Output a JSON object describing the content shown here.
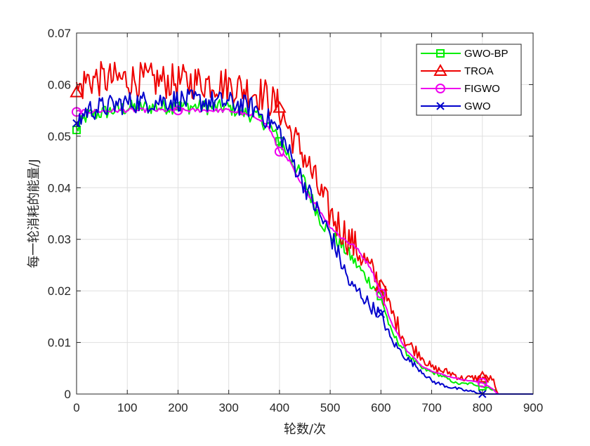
{
  "chart_data": {
    "type": "line",
    "title": "",
    "xlabel": "轮数/次",
    "ylabel": "每一轮消耗的能量/J",
    "xlim": [
      0,
      900
    ],
    "ylim": [
      0,
      0.07
    ],
    "xticks": [
      0,
      100,
      200,
      300,
      400,
      500,
      600,
      700,
      800,
      900
    ],
    "yticks": [
      0,
      0.01,
      0.02,
      0.03,
      0.04,
      0.05,
      0.06,
      0.07
    ],
    "xtick_labels": [
      "0",
      "100",
      "200",
      "300",
      "400",
      "500",
      "600",
      "700",
      "800",
      "900"
    ],
    "ytick_labels": [
      "0",
      "0.01",
      "0.02",
      "0.03",
      "0.04",
      "0.05",
      "0.06",
      "0.07"
    ],
    "grid": true,
    "legend_position": "top-right",
    "series": [
      {
        "name": "GWO-BP",
        "color": "#00ee00",
        "marker": "square",
        "marker_x": [
          0,
          200,
          400,
          600,
          800
        ],
        "noise": 0.0015,
        "points": [
          [
            0,
            0.0512
          ],
          [
            20,
            0.054
          ],
          [
            100,
            0.0555
          ],
          [
            200,
            0.0558
          ],
          [
            300,
            0.0555
          ],
          [
            350,
            0.054
          ],
          [
            380,
            0.052
          ],
          [
            400,
            0.049
          ],
          [
            420,
            0.046
          ],
          [
            450,
            0.041
          ],
          [
            480,
            0.034
          ],
          [
            500,
            0.031
          ],
          [
            530,
            0.028
          ],
          [
            560,
            0.024
          ],
          [
            600,
            0.019
          ],
          [
            620,
            0.012
          ],
          [
            650,
            0.008
          ],
          [
            680,
            0.005
          ],
          [
            720,
            0.0035
          ],
          [
            740,
            0.0025
          ],
          [
            750,
            0.002
          ],
          [
            780,
            0.002
          ],
          [
            800,
            0.0015
          ],
          [
            825,
            0.0008
          ],
          [
            830,
            0
          ],
          [
            900,
            0
          ]
        ]
      },
      {
        "name": "TROA",
        "color": "#ee0000",
        "marker": "triangle",
        "marker_x": [
          0,
          400,
          600,
          800
        ],
        "noise": 0.0035,
        "points": [
          [
            0,
            0.0585
          ],
          [
            20,
            0.061
          ],
          [
            100,
            0.061
          ],
          [
            200,
            0.0605
          ],
          [
            270,
            0.0605
          ],
          [
            320,
            0.0595
          ],
          [
            370,
            0.058
          ],
          [
            400,
            0.0555
          ],
          [
            420,
            0.051
          ],
          [
            450,
            0.046
          ],
          [
            480,
            0.039
          ],
          [
            500,
            0.035
          ],
          [
            530,
            0.031
          ],
          [
            560,
            0.027
          ],
          [
            580,
            0.024
          ],
          [
            600,
            0.021
          ],
          [
            620,
            0.016
          ],
          [
            650,
            0.01
          ],
          [
            680,
            0.0075
          ],
          [
            700,
            0.005
          ],
          [
            740,
            0.004
          ],
          [
            760,
            0.003
          ],
          [
            800,
            0.0032
          ],
          [
            820,
            0.003
          ],
          [
            830,
            0
          ],
          [
            900,
            0
          ]
        ]
      },
      {
        "name": "FIGWO",
        "color": "#ee00ee",
        "marker": "circle",
        "marker_x": [
          0,
          200,
          400,
          600,
          800
        ],
        "noise": 0.0004,
        "points": [
          [
            0,
            0.0547
          ],
          [
            30,
            0.0548
          ],
          [
            100,
            0.055
          ],
          [
            150,
            0.055
          ],
          [
            200,
            0.055
          ],
          [
            240,
            0.055
          ],
          [
            300,
            0.055
          ],
          [
            340,
            0.054
          ],
          [
            360,
            0.0535
          ],
          [
            380,
            0.0515
          ],
          [
            400,
            0.047
          ],
          [
            420,
            0.045
          ],
          [
            440,
            0.041
          ],
          [
            470,
            0.037
          ],
          [
            500,
            0.0325
          ],
          [
            520,
            0.0305
          ],
          [
            550,
            0.0285
          ],
          [
            580,
            0.0245
          ],
          [
            600,
            0.0195
          ],
          [
            620,
            0.014
          ],
          [
            650,
            0.0085
          ],
          [
            680,
            0.0055
          ],
          [
            700,
            0.0045
          ],
          [
            730,
            0.0035
          ],
          [
            760,
            0.0028
          ],
          [
            800,
            0.0022
          ],
          [
            820,
            0.001
          ],
          [
            830,
            0
          ],
          [
            900,
            0
          ]
        ]
      },
      {
        "name": "GWO",
        "color": "#0000cc",
        "marker": "x",
        "marker_x": [
          0,
          600,
          800
        ],
        "noise": 0.0022,
        "points": [
          [
            0,
            0.0525
          ],
          [
            20,
            0.055
          ],
          [
            100,
            0.0565
          ],
          [
            200,
            0.057
          ],
          [
            300,
            0.0565
          ],
          [
            350,
            0.0555
          ],
          [
            380,
            0.053
          ],
          [
            400,
            0.051
          ],
          [
            420,
            0.0465
          ],
          [
            450,
            0.0405
          ],
          [
            480,
            0.0345
          ],
          [
            500,
            0.031
          ],
          [
            520,
            0.026
          ],
          [
            540,
            0.021
          ],
          [
            560,
            0.0195
          ],
          [
            580,
            0.017
          ],
          [
            600,
            0.0155
          ],
          [
            620,
            0.0105
          ],
          [
            650,
            0.007
          ],
          [
            680,
            0.0045
          ],
          [
            700,
            0.0025
          ],
          [
            730,
            0.0015
          ],
          [
            760,
            0.0008
          ],
          [
            790,
            0.0003
          ],
          [
            800,
            0
          ],
          [
            900,
            0
          ]
        ]
      }
    ]
  }
}
